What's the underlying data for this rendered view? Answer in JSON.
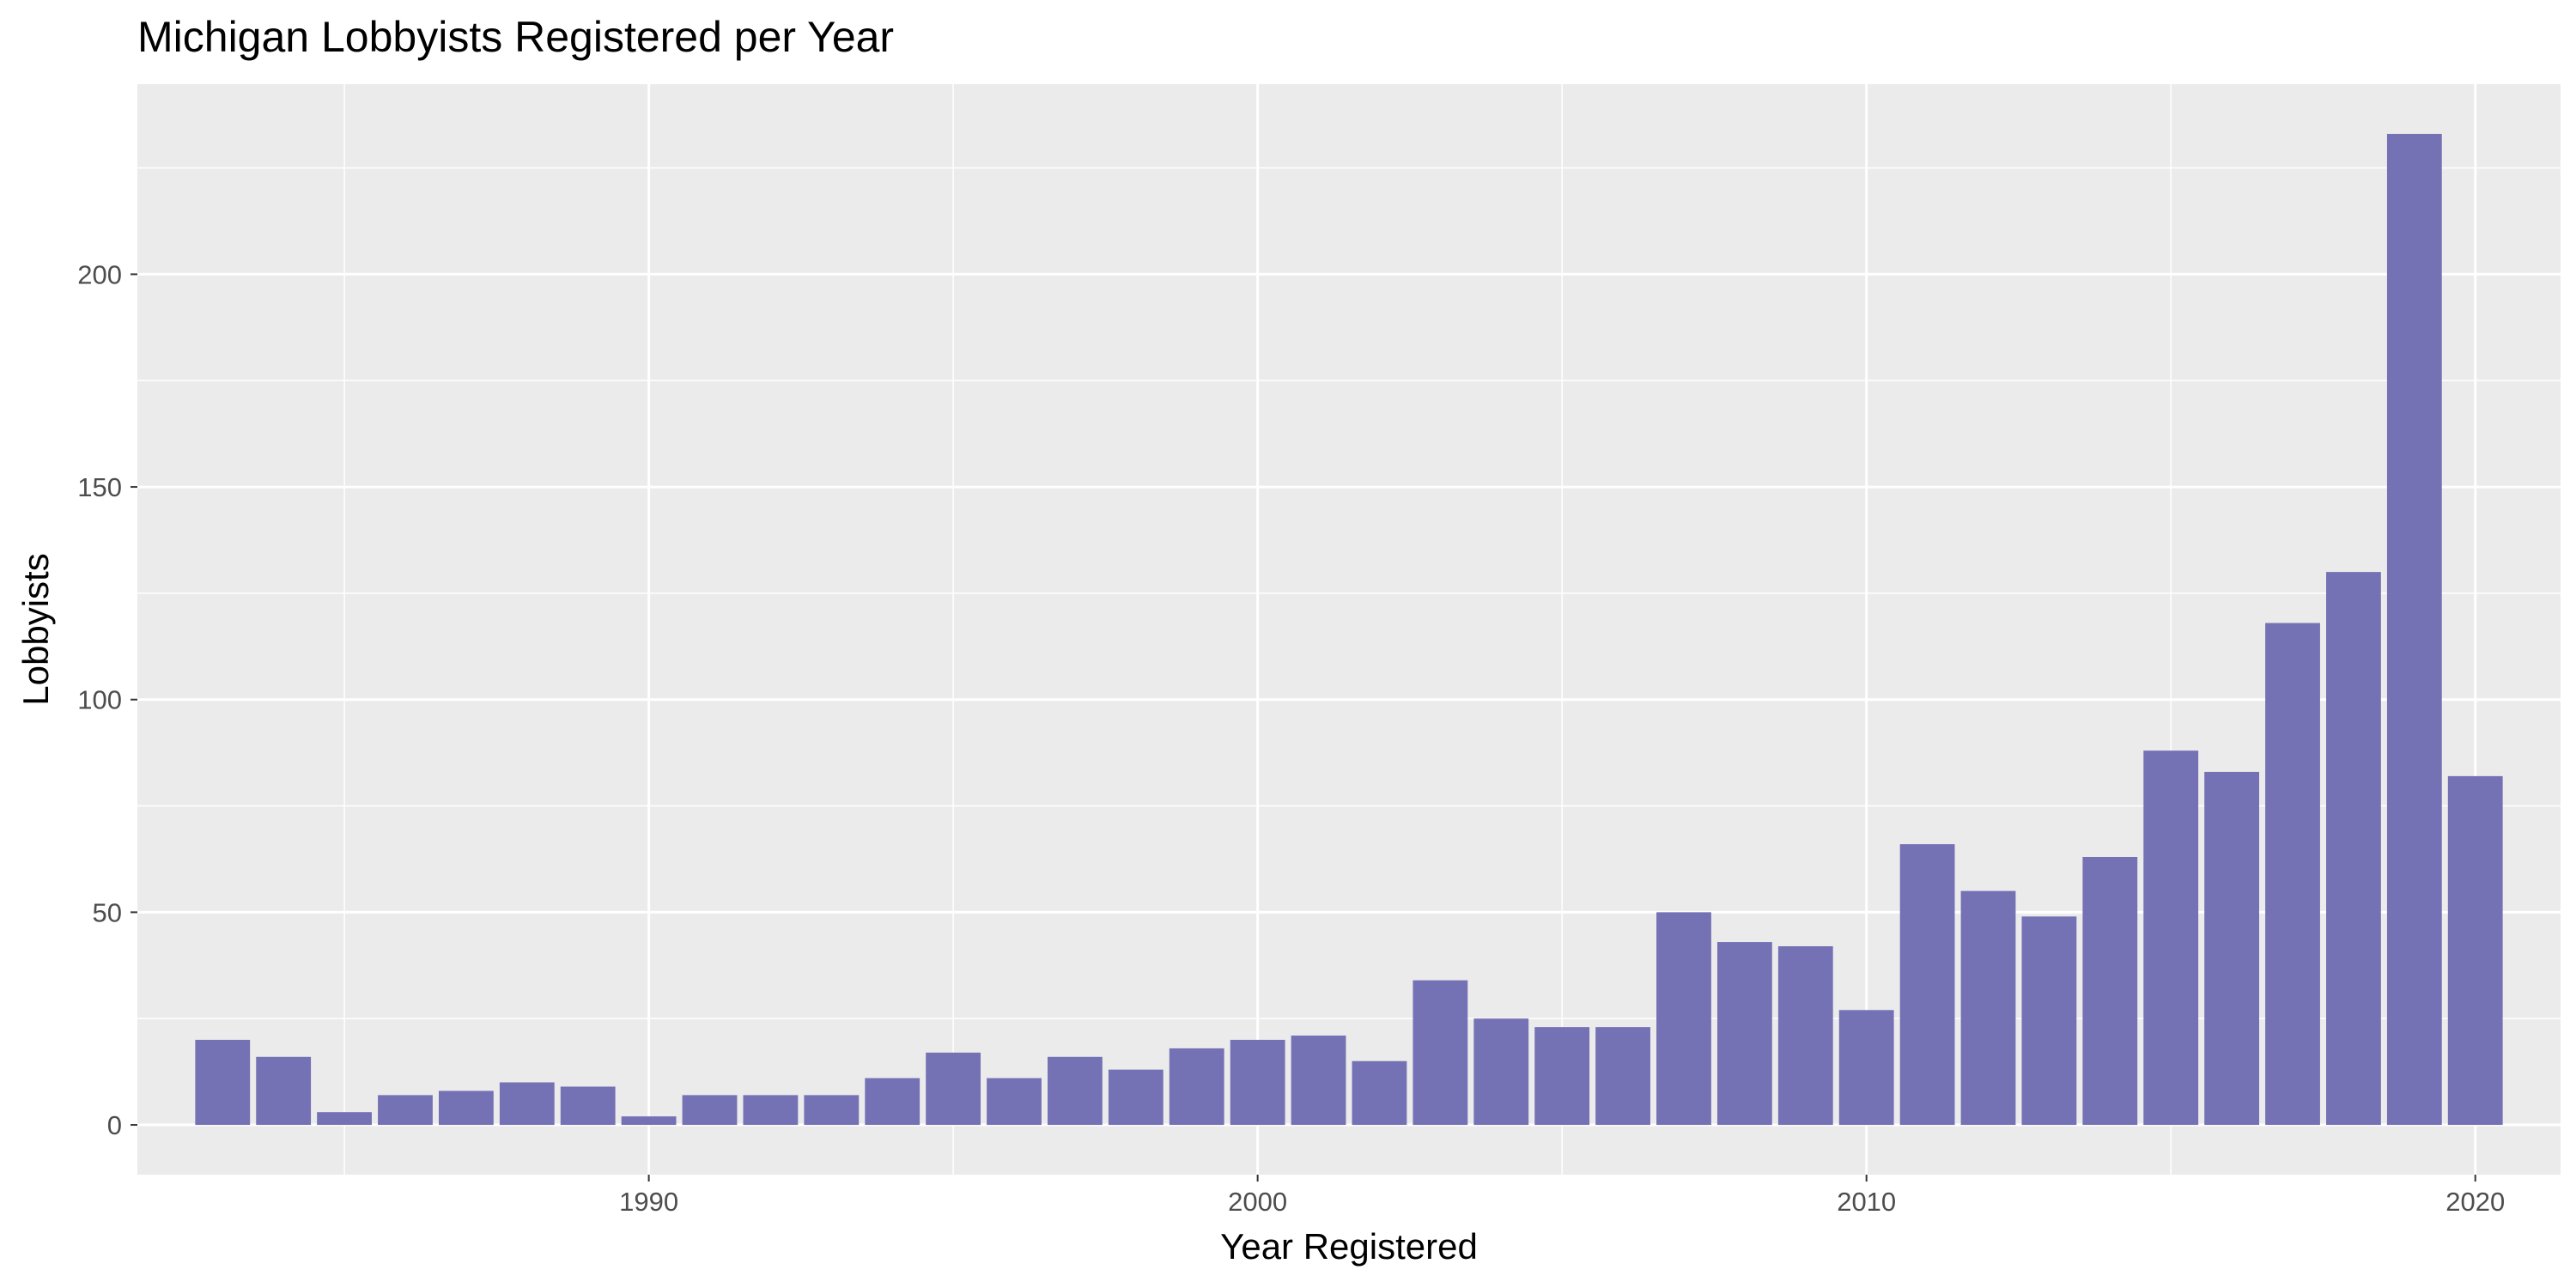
{
  "chart_data": {
    "type": "bar",
    "title": "Michigan Lobbyists Registered per Year",
    "xlabel": "Year Registered",
    "ylabel": "Lobbyists",
    "x": [
      1983,
      1984,
      1985,
      1986,
      1987,
      1988,
      1989,
      1990,
      1991,
      1992,
      1993,
      1994,
      1995,
      1996,
      1997,
      1998,
      1999,
      2000,
      2001,
      2002,
      2003,
      2004,
      2005,
      2006,
      2007,
      2008,
      2009,
      2010,
      2011,
      2012,
      2013,
      2014,
      2015,
      2016,
      2017,
      2018,
      2019,
      2020
    ],
    "values": [
      20,
      16,
      3,
      7,
      8,
      10,
      9,
      2,
      7,
      7,
      7,
      11,
      17,
      11,
      16,
      13,
      18,
      20,
      21,
      15,
      34,
      25,
      23,
      23,
      50,
      43,
      42,
      27,
      66,
      55,
      49,
      63,
      88,
      83,
      118,
      130,
      233,
      82
    ],
    "xlim": [
      1981.6,
      1985.0
    ],
    "xlim_full": [
      1981.6,
      2021.4
    ],
    "ylim": [
      -11.7,
      244.7
    ],
    "xticks": [
      1990,
      2000,
      2010,
      2020
    ],
    "yticks": [
      0,
      50,
      100,
      150,
      200
    ],
    "bar_color": "#7571b5",
    "panel_color": "#ebebeb",
    "grid": true,
    "legend": "none"
  }
}
